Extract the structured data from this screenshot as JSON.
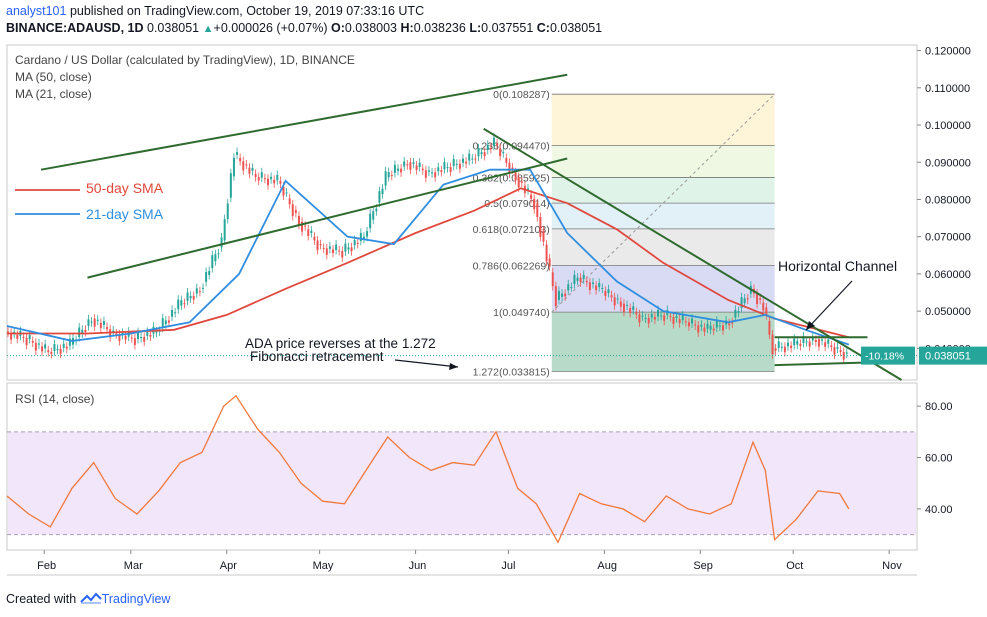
{
  "header": {
    "user": "analyst101",
    "published": " published on TradingView.com, October 19, 2019 07:33:16 UTC",
    "symbol_line": "BINANCE:ADAUSD, 1D",
    "last": "0.038051",
    "change_arrow": "▲",
    "change": "+0.000026 (+0.07%)",
    "o_label": "O:",
    "o": "0.038003",
    "h_label": "H:",
    "h": "0.038236",
    "l_label": "L:",
    "l": "0.037551",
    "c_label": "C:",
    "c": "0.038051"
  },
  "legend": {
    "pair": "Cardano / US Dollar (calculated by TradingView), 1D, BINANCE",
    "ma50": "MA (50, close)",
    "ma21": "MA (21, close)",
    "rsi": "RSI (14, close)"
  },
  "footer": {
    "created_with": "Created with",
    "brand": "TradingView"
  },
  "colors": {
    "sma50": "#e0483e",
    "sma21": "#2f8ee0",
    "trend": "#2f6b2f",
    "up": "#26a69a",
    "down": "#ef5350",
    "rsi_line": "#f0783c",
    "rsi_band": "#f2e6fb"
  },
  "chart_data": {
    "type": "line",
    "title": "Cardano / US Dollar (calculated by TradingView), 1D, BINANCE",
    "x_ticks": [
      "Feb",
      "Mar",
      "Apr",
      "May",
      "Jun",
      "Jul",
      "Aug",
      "Sep",
      "Oct",
      "Nov"
    ],
    "y_ticks": [
      "0.120000",
      "0.110000",
      "0.100000",
      "0.090000",
      "0.080000",
      "0.070000",
      "0.060000",
      "0.050000",
      "0.040000"
    ],
    "ylim": [
      0.0315,
      0.1215
    ],
    "last_price_label": "0.038051",
    "change_badge": "-10.18%",
    "series": [
      {
        "name": "price",
        "points": [
          [
            "2019-01-20",
            0.0445
          ],
          [
            "2019-01-27",
            0.0425
          ],
          [
            "2019-02-03",
            0.039
          ],
          [
            "2019-02-10",
            0.041
          ],
          [
            "2019-02-17",
            0.048
          ],
          [
            "2019-02-24",
            0.044
          ],
          [
            "2019-03-03",
            0.0425
          ],
          [
            "2019-03-10",
            0.0445
          ],
          [
            "2019-03-17",
            0.0515
          ],
          [
            "2019-03-24",
            0.056
          ],
          [
            "2019-03-31",
            0.069
          ],
          [
            "2019-04-04",
            0.092
          ],
          [
            "2019-04-11",
            0.086
          ],
          [
            "2019-04-18",
            0.085
          ],
          [
            "2019-04-25",
            0.074
          ],
          [
            "2019-05-02",
            0.067
          ],
          [
            "2019-05-09",
            0.066
          ],
          [
            "2019-05-16",
            0.07
          ],
          [
            "2019-05-23",
            0.086
          ],
          [
            "2019-05-30",
            0.09
          ],
          [
            "2019-06-06",
            0.087
          ],
          [
            "2019-06-13",
            0.089
          ],
          [
            "2019-06-20",
            0.091
          ],
          [
            "2019-06-27",
            0.095
          ],
          [
            "2019-07-04",
            0.086
          ],
          [
            "2019-07-10",
            0.079
          ],
          [
            "2019-07-17",
            0.053
          ],
          [
            "2019-07-24",
            0.059
          ],
          [
            "2019-07-31",
            0.056
          ],
          [
            "2019-08-07",
            0.052
          ],
          [
            "2019-08-14",
            0.048
          ],
          [
            "2019-08-21",
            0.049
          ],
          [
            "2019-08-28",
            0.047
          ],
          [
            "2019-09-04",
            0.045
          ],
          [
            "2019-09-11",
            0.047
          ],
          [
            "2019-09-18",
            0.056
          ],
          [
            "2019-09-22",
            0.051
          ],
          [
            "2019-09-25",
            0.04
          ],
          [
            "2019-10-02",
            0.041
          ],
          [
            "2019-10-09",
            0.0425
          ],
          [
            "2019-10-16",
            0.0395
          ],
          [
            "2019-10-19",
            0.0381
          ]
        ]
      },
      {
        "name": "50-day SMA",
        "points": [
          [
            "2019-01-20",
            0.044
          ],
          [
            "2019-02-15",
            0.044
          ],
          [
            "2019-03-15",
            0.045
          ],
          [
            "2019-04-01",
            0.049
          ],
          [
            "2019-04-20",
            0.056
          ],
          [
            "2019-05-10",
            0.063
          ],
          [
            "2019-06-01",
            0.071
          ],
          [
            "2019-06-20",
            0.077
          ],
          [
            "2019-07-05",
            0.083
          ],
          [
            "2019-07-20",
            0.079
          ],
          [
            "2019-08-05",
            0.072
          ],
          [
            "2019-08-20",
            0.063
          ],
          [
            "2019-09-10",
            0.053
          ],
          [
            "2019-09-25",
            0.048
          ],
          [
            "2019-10-19",
            0.043
          ]
        ]
      },
      {
        "name": "21-day SMA",
        "points": [
          [
            "2019-01-20",
            0.046
          ],
          [
            "2019-02-10",
            0.042
          ],
          [
            "2019-03-01",
            0.044
          ],
          [
            "2019-03-20",
            0.047
          ],
          [
            "2019-04-05",
            0.06
          ],
          [
            "2019-04-20",
            0.085
          ],
          [
            "2019-05-10",
            0.07
          ],
          [
            "2019-05-25",
            0.068
          ],
          [
            "2019-06-10",
            0.084
          ],
          [
            "2019-06-25",
            0.088
          ],
          [
            "2019-07-08",
            0.088
          ],
          [
            "2019-07-20",
            0.071
          ],
          [
            "2019-08-05",
            0.058
          ],
          [
            "2019-08-20",
            0.05
          ],
          [
            "2019-09-10",
            0.047
          ],
          [
            "2019-09-22",
            0.049
          ],
          [
            "2019-10-05",
            0.045
          ],
          [
            "2019-10-19",
            0.041
          ]
        ]
      }
    ],
    "fibonacci": {
      "start": "2019-07-15",
      "end": "2019-09-25",
      "levels": [
        {
          "label": "0(0.108287)",
          "value": 0.108287,
          "fill": "#f4cccc"
        },
        {
          "label": "0.236(0.094470)",
          "value": 0.09447,
          "fill": "#fdf2cc"
        },
        {
          "label": "0.382(0.085925)",
          "value": 0.085925,
          "fill": "#e8f5d8"
        },
        {
          "label": "0.5(0.079014)",
          "value": 0.079014,
          "fill": "#d6efe0"
        },
        {
          "label": "0.618(0.072103)",
          "value": 0.072103,
          "fill": "#d8ebf4"
        },
        {
          "label": "0.786(0.062269)",
          "value": 0.062269,
          "fill": "#e3e3e3"
        },
        {
          "label": "1(0.049740)",
          "value": 0.04974,
          "fill": "#cccff2"
        },
        {
          "label": "1.272(0.033815)",
          "value": 0.033815,
          "fill": "#9fcfb6"
        }
      ]
    },
    "rsi": {
      "name": "RSI (14, close)",
      "ylim": [
        24,
        89
      ],
      "y_ticks": [
        "80.00",
        "60.00",
        "40.00"
      ],
      "band": [
        30,
        70
      ],
      "points": [
        [
          "2019-01-20",
          45
        ],
        [
          "2019-01-27",
          38
        ],
        [
          "2019-02-03",
          33
        ],
        [
          "2019-02-10",
          48
        ],
        [
          "2019-02-17",
          58
        ],
        [
          "2019-02-24",
          44
        ],
        [
          "2019-03-03",
          38
        ],
        [
          "2019-03-10",
          47
        ],
        [
          "2019-03-17",
          58
        ],
        [
          "2019-03-24",
          62
        ],
        [
          "2019-03-31",
          80
        ],
        [
          "2019-04-04",
          84
        ],
        [
          "2019-04-11",
          71
        ],
        [
          "2019-04-18",
          62
        ],
        [
          "2019-04-25",
          50
        ],
        [
          "2019-05-02",
          43
        ],
        [
          "2019-05-09",
          42
        ],
        [
          "2019-05-16",
          55
        ],
        [
          "2019-05-23",
          68
        ],
        [
          "2019-05-30",
          60
        ],
        [
          "2019-06-06",
          55
        ],
        [
          "2019-06-13",
          58
        ],
        [
          "2019-06-20",
          57
        ],
        [
          "2019-06-27",
          70
        ],
        [
          "2019-07-04",
          48
        ],
        [
          "2019-07-10",
          42
        ],
        [
          "2019-07-17",
          27
        ],
        [
          "2019-07-24",
          46
        ],
        [
          "2019-07-31",
          42
        ],
        [
          "2019-08-07",
          40
        ],
        [
          "2019-08-14",
          35
        ],
        [
          "2019-08-21",
          45
        ],
        [
          "2019-08-28",
          40
        ],
        [
          "2019-09-04",
          38
        ],
        [
          "2019-09-11",
          42
        ],
        [
          "2019-09-18",
          66
        ],
        [
          "2019-09-22",
          55
        ],
        [
          "2019-09-25",
          28
        ],
        [
          "2019-10-02",
          36
        ],
        [
          "2019-10-09",
          47
        ],
        [
          "2019-10-16",
          46
        ],
        [
          "2019-10-19",
          40
        ]
      ]
    },
    "annotations": [
      {
        "text": "50-day SMA",
        "color": "#e0483e"
      },
      {
        "text": "21-day  SMA",
        "color": "#2f8ee0"
      },
      {
        "text": "ADA price reverses at the 1.272",
        "color": "#131722"
      },
      {
        "text": "Fibonacci retracement",
        "color": "#131722"
      },
      {
        "text": "Horizontal Channel",
        "color": "#131722"
      }
    ],
    "trendlines": [
      {
        "name": "upper-ascending",
        "points": [
          [
            "2019-01-31",
            0.088
          ],
          [
            "2019-07-20",
            0.1135
          ]
        ]
      },
      {
        "name": "lower-ascending",
        "points": [
          [
            "2019-02-15",
            0.059
          ],
          [
            "2019-07-20",
            0.091
          ]
        ]
      },
      {
        "name": "descending",
        "points": [
          [
            "2019-06-23",
            0.099
          ],
          [
            "2019-11-05",
            0.0315
          ]
        ]
      },
      {
        "name": "channel-top",
        "points": [
          [
            "2019-09-25",
            0.043
          ],
          [
            "2019-10-25",
            0.043
          ]
        ]
      },
      {
        "name": "channel-bottom",
        "points": [
          [
            "2019-09-25",
            0.0355
          ],
          [
            "2019-10-25",
            0.0362
          ]
        ]
      }
    ]
  }
}
